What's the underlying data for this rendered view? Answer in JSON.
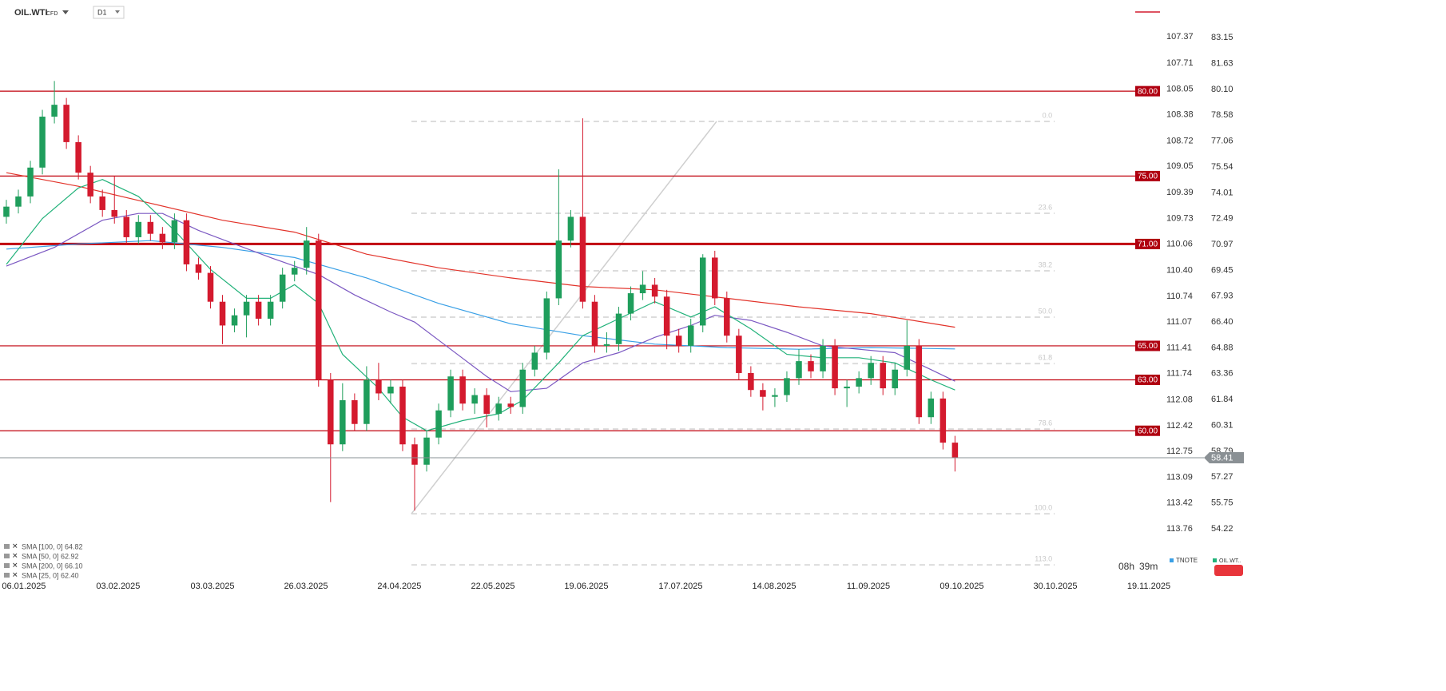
{
  "toolbar": {
    "symbol": "OIL.WTI",
    "kind": "CFD",
    "interval": "D1"
  },
  "chart_data": {
    "type": "candlestick",
    "open": [
      72.6,
      73.2,
      73.8,
      75.5,
      78.5,
      79.2,
      77.0,
      75.2,
      73.8,
      73.0,
      72.6,
      71.4,
      72.3,
      71.6,
      71.1,
      72.4,
      69.8,
      69.3,
      67.6,
      66.2,
      66.8,
      67.6,
      66.6,
      67.6,
      69.2,
      69.6,
      71.2,
      63.0,
      59.2,
      61.8,
      60.4,
      63.0,
      62.2,
      62.6,
      59.2,
      58.0,
      59.6,
      61.2,
      63.2,
      61.6,
      62.1,
      61.0,
      61.6,
      61.4,
      63.6,
      64.6,
      67.8,
      71.2,
      72.6,
      67.6,
      65.0,
      65.1,
      66.9,
      68.1,
      68.6,
      67.9,
      65.6,
      65.0,
      66.2,
      70.2,
      67.8,
      65.6,
      63.4,
      62.4,
      62.0,
      62.1,
      63.1,
      64.1,
      63.5,
      65.0,
      62.5,
      62.6,
      63.1,
      64.0,
      62.5,
      63.6,
      65.0,
      60.8,
      61.9,
      59.3
    ],
    "high": [
      73.6,
      74.2,
      75.9,
      78.9,
      80.6,
      79.6,
      77.4,
      75.6,
      74.2,
      75.0,
      73.0,
      72.7,
      72.7,
      72.0,
      72.8,
      72.8,
      70.2,
      69.7,
      68.0,
      67.2,
      68.0,
      68.0,
      68.0,
      69.6,
      70.0,
      72.0,
      71.6,
      63.4,
      62.8,
      62.2,
      63.8,
      64.0,
      63.0,
      63.0,
      59.6,
      60.0,
      61.6,
      63.6,
      63.6,
      62.5,
      62.5,
      62.0,
      62.0,
      64.0,
      65.0,
      68.2,
      75.4,
      73.0,
      78.4,
      68.0,
      65.8,
      67.3,
      68.5,
      69.4,
      69.0,
      68.3,
      66.0,
      66.6,
      70.4,
      70.6,
      68.2,
      66.0,
      63.8,
      62.8,
      62.5,
      63.5,
      64.8,
      64.5,
      65.4,
      65.4,
      63.0,
      63.5,
      64.4,
      64.4,
      64.0,
      66.5,
      65.4,
      62.3,
      62.3,
      59.7
    ],
    "low": [
      72.2,
      72.8,
      73.4,
      75.1,
      78.1,
      76.6,
      74.8,
      73.4,
      72.6,
      72.2,
      71.0,
      71.0,
      71.2,
      70.7,
      70.7,
      69.4,
      68.9,
      67.2,
      65.1,
      65.8,
      65.5,
      66.2,
      66.2,
      67.2,
      68.8,
      69.2,
      62.6,
      55.8,
      58.8,
      60.0,
      60.0,
      61.8,
      61.6,
      58.8,
      55.3,
      57.6,
      59.2,
      60.8,
      61.2,
      61.0,
      60.2,
      60.6,
      61.0,
      61.0,
      63.2,
      64.2,
      67.4,
      70.8,
      67.2,
      64.6,
      64.6,
      64.7,
      66.5,
      67.7,
      67.5,
      64.8,
      64.6,
      64.6,
      65.8,
      67.4,
      65.2,
      63.0,
      62.0,
      61.2,
      61.4,
      61.7,
      62.7,
      63.1,
      63.1,
      62.1,
      61.4,
      62.2,
      62.7,
      62.1,
      62.1,
      63.2,
      60.4,
      60.4,
      58.9,
      57.6
    ],
    "close": [
      73.2,
      73.8,
      75.5,
      78.5,
      79.2,
      77.0,
      75.2,
      73.8,
      73.0,
      72.6,
      71.4,
      72.3,
      71.6,
      71.1,
      72.4,
      69.8,
      69.3,
      67.6,
      66.2,
      66.8,
      67.6,
      66.6,
      67.6,
      69.2,
      69.6,
      71.2,
      63.0,
      59.2,
      61.8,
      60.4,
      63.0,
      62.2,
      62.6,
      59.2,
      58.0,
      59.6,
      61.2,
      63.2,
      61.6,
      62.1,
      61.0,
      61.6,
      61.4,
      63.6,
      64.6,
      67.8,
      71.2,
      72.6,
      67.6,
      65.0,
      65.1,
      66.9,
      68.1,
      68.6,
      67.9,
      65.6,
      65.0,
      66.2,
      70.2,
      67.8,
      65.6,
      63.4,
      62.4,
      62.0,
      62.1,
      63.1,
      64.1,
      63.5,
      65.0,
      62.5,
      62.6,
      63.1,
      64.0,
      62.5,
      63.6,
      65.0,
      60.8,
      61.9,
      59.3,
      58.41
    ],
    "up_color": "#1f9e5c",
    "down_color": "#d41a2e",
    "xlim": [
      -0.53,
      95.94
    ],
    "xticks": [
      {
        "value": 1.46,
        "label": "06.01.2025"
      },
      {
        "value": 9.31,
        "label": "03.02.2025"
      },
      {
        "value": 17.17,
        "label": "03.03.2025"
      },
      {
        "value": 24.95,
        "label": "26.03.2025"
      },
      {
        "value": 32.73,
        "label": "24.04.2025"
      },
      {
        "value": 40.52,
        "label": "22.05.2025"
      },
      {
        "value": 48.3,
        "label": "19.06.2025"
      },
      {
        "value": 56.15,
        "label": "17.07.2025"
      },
      {
        "value": 63.94,
        "label": "14.08.2025"
      },
      {
        "value": 71.79,
        "label": "11.09.2025"
      },
      {
        "value": 79.57,
        "label": "09.10.2025"
      },
      {
        "value": 87.36,
        "label": "30.10.2025"
      },
      {
        "value": 95.14,
        "label": "19.11.2025"
      }
    ],
    "ylim": [
      51.26,
      85.37
    ],
    "yticks": [
      83.15,
      81.63,
      {
        "value": 80.1,
        "label": "80.10"
      },
      78.58,
      77.06,
      75.54,
      74.01,
      72.49,
      70.97,
      69.45,
      67.93,
      {
        "value": 66.4,
        "label": "66.40"
      },
      64.88,
      63.36,
      61.84,
      60.31,
      58.79,
      57.27,
      55.75,
      54.22
    ],
    "y2lim": [
      114.41,
      106.89
    ],
    "y2ticks": [
      107.37,
      107.71,
      108.05,
      108.38,
      108.72,
      109.05,
      109.39,
      109.73,
      110.06,
      {
        "value": 110.4,
        "label": "110.40"
      },
      110.74,
      111.07,
      111.41,
      111.74,
      112.08,
      112.42,
      112.75,
      113.09,
      113.42,
      113.76
    ],
    "series": [
      {
        "name": "SMA [100, 0] 64.82",
        "color": "#3aa0e6",
        "x": [
          0,
          6,
          12,
          18,
          24,
          30,
          36,
          42,
          48,
          54,
          60,
          66,
          72,
          79
        ],
        "values": [
          70.7,
          71.0,
          71.2,
          70.8,
          70.2,
          69.0,
          67.5,
          66.3,
          65.6,
          65.1,
          64.9,
          64.8,
          64.9,
          64.82
        ]
      },
      {
        "name": "SMA [50, 0] 62.92",
        "color": "#7b58c2",
        "x": [
          0,
          4,
          8,
          11,
          13,
          16,
          19,
          22,
          24,
          26,
          29,
          32,
          34,
          37,
          40,
          42,
          45,
          48,
          51,
          54,
          57,
          59,
          62,
          65,
          68,
          71,
          74,
          77,
          79
        ],
        "values": [
          69.7,
          70.8,
          72.4,
          72.8,
          72.8,
          71.8,
          71.0,
          70.2,
          69.7,
          69.2,
          68.0,
          67.0,
          66.4,
          64.8,
          63.2,
          62.3,
          62.5,
          64.0,
          64.6,
          65.5,
          66.2,
          66.8,
          66.5,
          65.8,
          65.0,
          64.8,
          64.6,
          63.6,
          62.92
        ]
      },
      {
        "name": "SMA [200, 0] 66.10",
        "color": "#e2332a",
        "x": [
          0,
          6,
          12,
          18,
          24,
          30,
          36,
          42,
          48,
          54,
          60,
          66,
          72,
          79
        ],
        "values": [
          75.2,
          74.4,
          73.4,
          72.4,
          71.7,
          70.4,
          69.6,
          69.0,
          68.5,
          68.3,
          67.8,
          67.3,
          66.9,
          66.1
        ]
      },
      {
        "name": "SMA [25, 0] 62.40",
        "color": "#22b27a",
        "x": [
          0,
          3,
          6,
          8,
          11,
          14,
          17,
          20,
          22,
          24,
          26,
          28,
          31,
          33,
          35,
          38,
          41,
          43,
          46,
          48,
          51,
          54,
          57,
          59,
          62,
          65,
          68,
          71,
          74,
          77,
          79
        ],
        "values": [
          69.8,
          72.5,
          74.3,
          74.8,
          73.8,
          71.8,
          69.5,
          67.8,
          67.8,
          68.6,
          67.5,
          64.5,
          62.5,
          60.8,
          60.0,
          60.6,
          61.0,
          61.8,
          64.0,
          65.6,
          66.6,
          67.6,
          66.7,
          67.3,
          66.0,
          64.5,
          64.3,
          64.3,
          64.0,
          63.0,
          62.4
        ]
      }
    ],
    "levels": [
      {
        "value": 80,
        "label": "80.00"
      },
      {
        "value": 75,
        "label": "75.00"
      },
      {
        "value": 71,
        "label": "71.00"
      },
      {
        "value": 65,
        "label": "65.00"
      },
      {
        "value": 63,
        "label": "63.00"
      },
      {
        "value": 60,
        "label": "60.00"
      }
    ],
    "level_color": "#c0000c",
    "last_price": 58.41,
    "fib_x": [
      33.73,
      87.3
    ],
    "fib": [
      {
        "level": "0.0",
        "price": 78.22
      },
      {
        "level": "23.6",
        "price": 72.81
      },
      {
        "level": "38.2",
        "price": 69.42
      },
      {
        "level": "50.0",
        "price": 66.69
      },
      {
        "level": "61.8",
        "price": 63.96
      },
      {
        "level": "78.6",
        "price": 60.1
      },
      {
        "level": "100.0",
        "price": 55.11
      },
      {
        "level": "113.0",
        "price": 52.1
      }
    ],
    "trendline": {
      "x": [
        33.73,
        59.15
      ],
      "y": [
        55.11,
        78.22
      ]
    }
  },
  "footer": {
    "hours": "08h",
    "minutes": "39m",
    "compare": [
      "TNOTE",
      "OIL.WT.."
    ]
  }
}
